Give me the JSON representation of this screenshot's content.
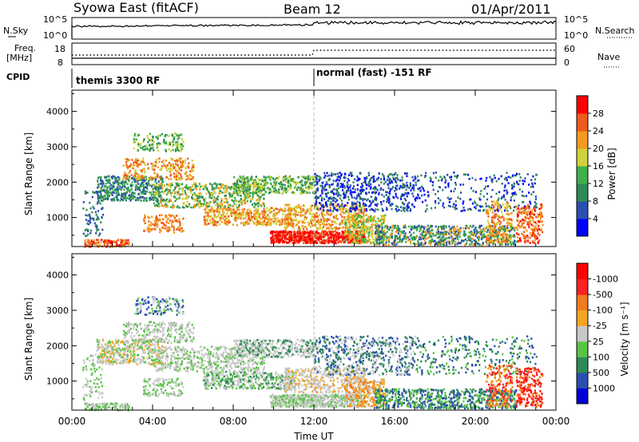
{
  "header": {
    "title_left": "Syowa East (fitACF)",
    "title_center": "Beam 12",
    "title_right": "01/Apr/2011"
  },
  "top_panels": {
    "nsky_label": "N.Sky",
    "nsky_ticks": [
      "10^5",
      "10^0"
    ],
    "nsearch_label": "N.Search",
    "nsearch_ticks": [
      "10^5",
      "10^0"
    ],
    "freq_label_1": "Freq.",
    "freq_label_2": "[MHz]",
    "freq_ticks": [
      "18",
      "8"
    ],
    "nave_label": "Nave",
    "nave_ticks": [
      "60",
      "0"
    ],
    "cpid_label": "CPID",
    "cpid_segments": [
      "themis 3300 RF",
      "normal (fast) -151 RF"
    ],
    "cpid_change_hour": 12
  },
  "chart_data": [
    {
      "type": "heatmap",
      "parameter": "Power",
      "ylabel": "Slant Range [km]",
      "ylim": [
        180,
        4600
      ],
      "yticks": [
        "1000",
        "2000",
        "3000",
        "4000"
      ],
      "xlim": [
        0,
        24
      ],
      "colorbar_label": "Power [dB]",
      "colorbar_ticks": [
        "4",
        "8",
        "12",
        "16",
        "20",
        "24",
        "28"
      ],
      "colorbar_colors": [
        "#0000ff",
        "#2b4fb0",
        "#2e8a55",
        "#3fb04a",
        "#cfd23a",
        "#f39a1f",
        "#f05a1c",
        "#ff0000"
      ]
    },
    {
      "type": "heatmap",
      "parameter": "Velocity",
      "ylabel": "Slant Range [km]",
      "ylim": [
        180,
        4600
      ],
      "yticks": [
        "1000",
        "2000",
        "3000",
        "4000"
      ],
      "xlim": [
        0,
        24
      ],
      "xticks": [
        "00:00",
        "04:00",
        "08:00",
        "12:00",
        "16:00",
        "20:00",
        "00:00"
      ],
      "xlabel": "Time UT",
      "colorbar_label": "Velocity [m s⁻¹]",
      "colorbar_ticks": [
        "1000",
        "500",
        "100",
        "25",
        "-25",
        "-100",
        "-500",
        "-1000"
      ],
      "colorbar_colors": [
        "#0000d8",
        "#2b4fb0",
        "#2e8a55",
        "#57c444",
        "#c8c8c8",
        "#f3a51f",
        "#f07a1c",
        "#ff2020",
        "#ff0000"
      ]
    }
  ]
}
